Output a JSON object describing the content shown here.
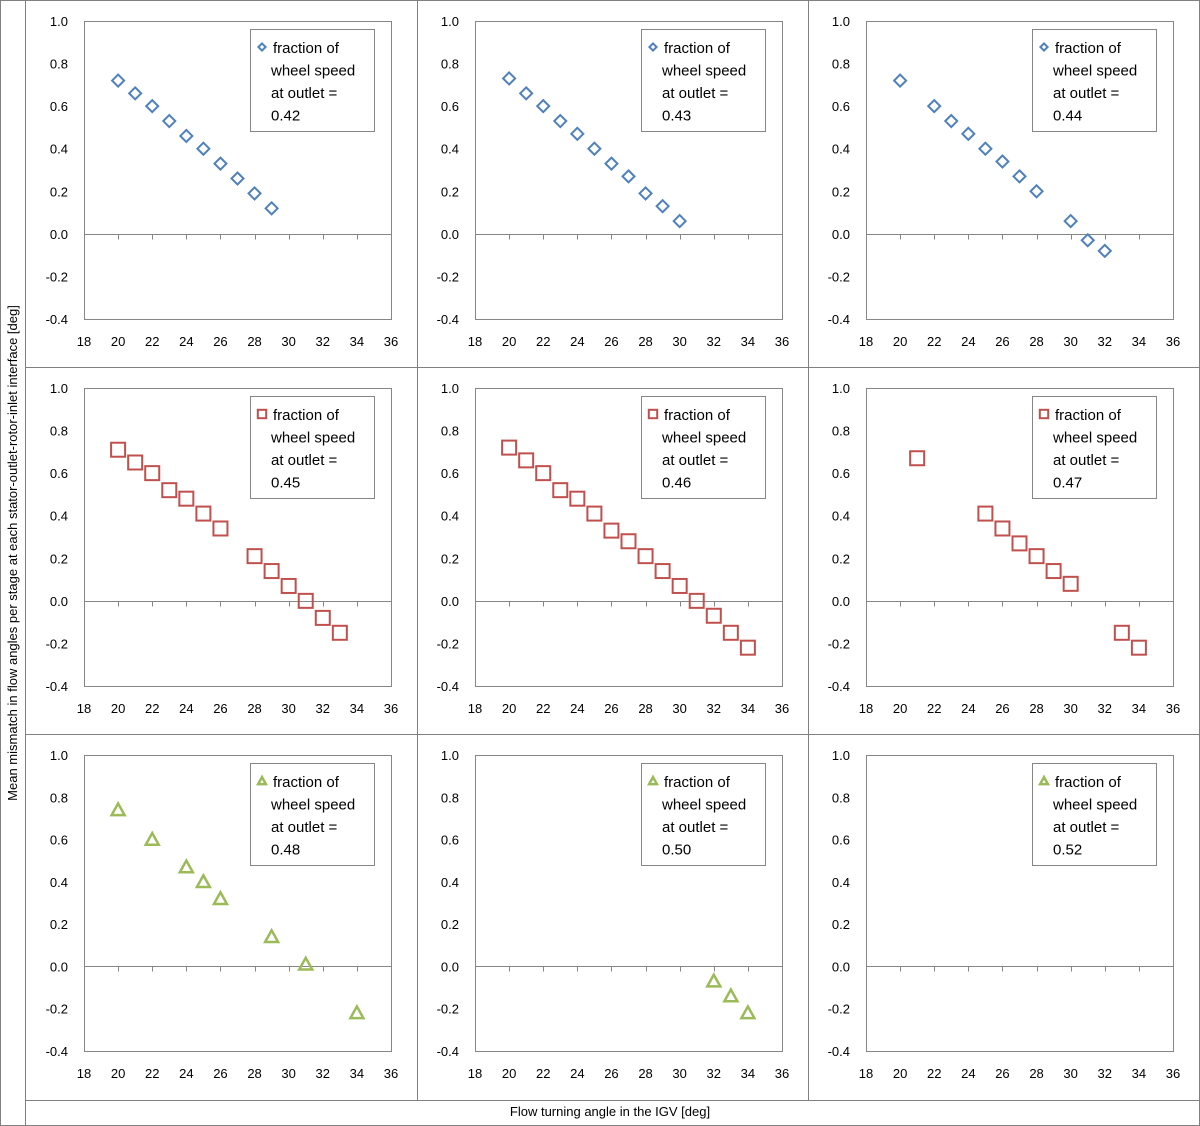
{
  "figure": {
    "ylabel": "Mean mismatch in flow angles per stage at each stator-outlet-rotor-inlet interface [deg]",
    "xlabel": "Flow turning angle in the IGV [deg]"
  },
  "colors": {
    "blue": "#4f81bd",
    "red": "#c0504d",
    "green": "#9bbb59"
  },
  "chart_data": [
    {
      "type": "scatter",
      "marker": "diamond",
      "color": "#4f81bd",
      "xlim": [
        18,
        36
      ],
      "ylim": [
        -0.4,
        1.0
      ],
      "xticks": [
        "18",
        "20",
        "22",
        "24",
        "26",
        "28",
        "30",
        "32",
        "34",
        "36"
      ],
      "yticks": [
        "1.0",
        "0.8",
        "0.6",
        "0.4",
        "0.2",
        "0.0",
        "-0.2",
        "-0.4"
      ],
      "legend": [
        "fraction of",
        "wheel speed",
        "at outlet =",
        "0.42"
      ],
      "x": [
        20,
        21,
        22,
        23,
        24,
        25,
        26,
        27,
        28,
        29
      ],
      "y": [
        0.72,
        0.66,
        0.6,
        0.53,
        0.46,
        0.4,
        0.33,
        0.26,
        0.19,
        0.12
      ]
    },
    {
      "type": "scatter",
      "marker": "diamond",
      "color": "#4f81bd",
      "xlim": [
        18,
        36
      ],
      "ylim": [
        -0.4,
        1.0
      ],
      "xticks": [
        "18",
        "20",
        "22",
        "24",
        "26",
        "28",
        "30",
        "32",
        "34",
        "36"
      ],
      "yticks": [
        "1.0",
        "0.8",
        "0.6",
        "0.4",
        "0.2",
        "0.0",
        "-0.2",
        "-0.4"
      ],
      "legend": [
        "fraction of",
        "wheel speed",
        "at outlet =",
        "0.43"
      ],
      "x": [
        20,
        21,
        22,
        23,
        24,
        25,
        26,
        27,
        28,
        29,
        30
      ],
      "y": [
        0.73,
        0.66,
        0.6,
        0.53,
        0.47,
        0.4,
        0.33,
        0.27,
        0.19,
        0.13,
        0.06
      ]
    },
    {
      "type": "scatter",
      "marker": "diamond",
      "color": "#4f81bd",
      "xlim": [
        18,
        36
      ],
      "ylim": [
        -0.4,
        1.0
      ],
      "xticks": [
        "18",
        "20",
        "22",
        "24",
        "26",
        "28",
        "30",
        "32",
        "34",
        "36"
      ],
      "yticks": [
        "1.0",
        "0.8",
        "0.6",
        "0.4",
        "0.2",
        "0.0",
        "-0.2",
        "-0.4"
      ],
      "legend": [
        "fraction of",
        "wheel speed",
        "at outlet =",
        "0.44"
      ],
      "x": [
        20,
        22,
        23,
        24,
        25,
        26,
        27,
        28,
        30,
        31,
        32
      ],
      "y": [
        0.72,
        0.6,
        0.53,
        0.47,
        0.4,
        0.34,
        0.27,
        0.2,
        0.06,
        -0.03,
        -0.08
      ]
    },
    {
      "type": "scatter",
      "marker": "square",
      "color": "#c0504d",
      "xlim": [
        18,
        36
      ],
      "ylim": [
        -0.4,
        1.0
      ],
      "xticks": [
        "18",
        "20",
        "22",
        "24",
        "26",
        "28",
        "30",
        "32",
        "34",
        "36"
      ],
      "yticks": [
        "1.0",
        "0.8",
        "0.6",
        "0.4",
        "0.2",
        "0.0",
        "-0.2",
        "-0.4"
      ],
      "legend": [
        "fraction of",
        "wheel speed",
        "at outlet =",
        "0.45"
      ],
      "x": [
        20,
        21,
        22,
        23,
        24,
        25,
        26,
        28,
        29,
        30,
        31,
        32,
        33
      ],
      "y": [
        0.71,
        0.65,
        0.6,
        0.52,
        0.48,
        0.41,
        0.34,
        0.21,
        0.14,
        0.07,
        0.0,
        -0.08,
        -0.15
      ]
    },
    {
      "type": "scatter",
      "marker": "square",
      "color": "#c0504d",
      "xlim": [
        18,
        36
      ],
      "ylim": [
        -0.4,
        1.0
      ],
      "xticks": [
        "18",
        "20",
        "22",
        "24",
        "26",
        "28",
        "30",
        "32",
        "34",
        "36"
      ],
      "yticks": [
        "1.0",
        "0.8",
        "0.6",
        "0.4",
        "0.2",
        "0.0",
        "-0.2",
        "-0.4"
      ],
      "legend": [
        "fraction of",
        "wheel speed",
        "at outlet =",
        "0.46"
      ],
      "x": [
        20,
        21,
        22,
        23,
        24,
        25,
        26,
        27,
        28,
        29,
        30,
        31,
        32,
        33,
        34
      ],
      "y": [
        0.72,
        0.66,
        0.6,
        0.52,
        0.48,
        0.41,
        0.33,
        0.28,
        0.21,
        0.14,
        0.07,
        0.0,
        -0.07,
        -0.15,
        -0.22
      ]
    },
    {
      "type": "scatter",
      "marker": "square",
      "color": "#c0504d",
      "xlim": [
        18,
        36
      ],
      "ylim": [
        -0.4,
        1.0
      ],
      "xticks": [
        "18",
        "20",
        "22",
        "24",
        "26",
        "28",
        "30",
        "32",
        "34",
        "36"
      ],
      "yticks": [
        "1.0",
        "0.8",
        "0.6",
        "0.4",
        "0.2",
        "0.0",
        "-0.2",
        "-0.4"
      ],
      "legend": [
        "fraction of",
        "wheel speed",
        "at outlet =",
        "0.47"
      ],
      "x": [
        21,
        25,
        26,
        27,
        28,
        29,
        30,
        33,
        34
      ],
      "y": [
        0.67,
        0.41,
        0.34,
        0.27,
        0.21,
        0.14,
        0.08,
        -0.15,
        -0.22
      ]
    },
    {
      "type": "scatter",
      "marker": "triangle",
      "color": "#9bbb59",
      "xlim": [
        18,
        36
      ],
      "ylim": [
        -0.4,
        1.0
      ],
      "xticks": [
        "18",
        "20",
        "22",
        "24",
        "26",
        "28",
        "30",
        "32",
        "34",
        "36"
      ],
      "yticks": [
        "1.0",
        "0.8",
        "0.6",
        "0.4",
        "0.2",
        "0.0",
        "-0.2",
        "-0.4"
      ],
      "legend": [
        "fraction of",
        "wheel speed",
        "at outlet =",
        "0.48"
      ],
      "x": [
        20,
        22,
        24,
        25,
        26,
        29,
        31,
        34
      ],
      "y": [
        0.74,
        0.6,
        0.47,
        0.4,
        0.32,
        0.14,
        0.01,
        -0.22
      ]
    },
    {
      "type": "scatter",
      "marker": "triangle",
      "color": "#9bbb59",
      "xlim": [
        18,
        36
      ],
      "ylim": [
        -0.4,
        1.0
      ],
      "xticks": [
        "18",
        "20",
        "22",
        "24",
        "26",
        "28",
        "30",
        "32",
        "34",
        "36"
      ],
      "yticks": [
        "1.0",
        "0.8",
        "0.6",
        "0.4",
        "0.2",
        "0.0",
        "-0.2",
        "-0.4"
      ],
      "legend": [
        "fraction of",
        "wheel speed",
        "at outlet =",
        "0.50"
      ],
      "x": [
        32,
        33,
        34
      ],
      "y": [
        -0.07,
        -0.14,
        -0.22
      ]
    },
    {
      "type": "scatter",
      "marker": "triangle",
      "color": "#9bbb59",
      "xlim": [
        18,
        36
      ],
      "ylim": [
        -0.4,
        1.0
      ],
      "xticks": [
        "18",
        "20",
        "22",
        "24",
        "26",
        "28",
        "30",
        "32",
        "34",
        "36"
      ],
      "yticks": [
        "1.0",
        "0.8",
        "0.6",
        "0.4",
        "0.2",
        "0.0",
        "-0.2",
        "-0.4"
      ],
      "legend": [
        "fraction of",
        "wheel speed",
        "at outlet =",
        "0.52"
      ],
      "x": [],
      "y": []
    }
  ]
}
